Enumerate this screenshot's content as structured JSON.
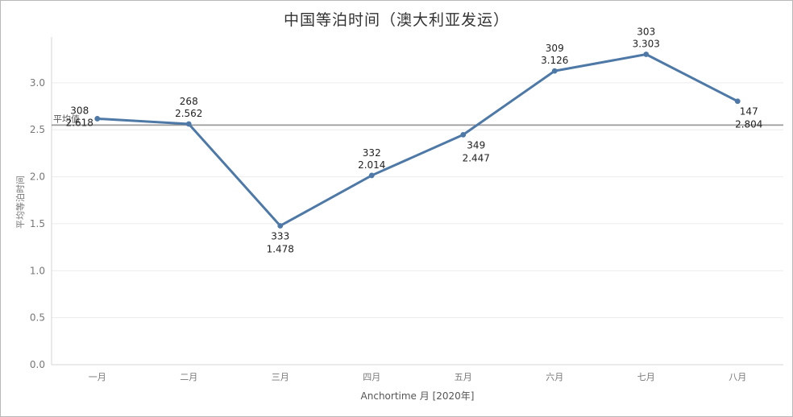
{
  "chart_data": {
    "type": "line",
    "title": "中国等泊时间（澳大利亚发运）",
    "xlabel": "Anchortime 月 [2020年]",
    "ylabel": "平均等泊时间",
    "categories": [
      "一月",
      "二月",
      "三月",
      "四月",
      "五月",
      "六月",
      "七月",
      "八月"
    ],
    "series": [
      {
        "values": [
          2.618,
          2.562,
          1.478,
          2.014,
          2.447,
          3.126,
          3.303,
          2.804
        ],
        "counts": [
          "308",
          "268",
          "333",
          "332",
          "349",
          "309",
          "303",
          "147"
        ],
        "value_labels": [
          "2.618",
          "2.562",
          "1.478",
          "2.014",
          "2.447",
          "3.126",
          "3.303",
          "2.804"
        ],
        "color": "#4e79a7"
      }
    ],
    "reference_line": {
      "label": "平均值",
      "value": 2.55,
      "color": "#9a9a9a"
    },
    "yticks": [
      "0.0",
      "0.5",
      "1.0",
      "1.5",
      "2.0",
      "2.5",
      "3.0"
    ],
    "ylim": [
      0,
      3.47
    ],
    "grid": true
  }
}
